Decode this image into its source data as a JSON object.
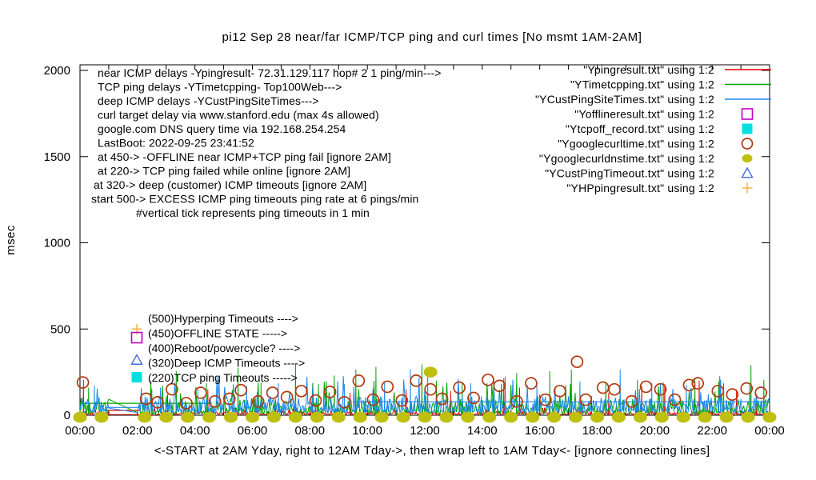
{
  "chart_data": {
    "type": "line",
    "title": "pi12 Sep 28  near/far ICMP/TCP ping and curl times [No msmt 1AM-2AM]",
    "xlabel": "<-START at 2AM Yday, right to 12AM Tday->, then wrap left to 1AM Tday<- [ignore connecting lines]",
    "ylabel": "msec",
    "ylim": [
      0,
      2000
    ],
    "xlim_hours": [
      0,
      24
    ],
    "y_ticks": [
      0,
      500,
      1000,
      1500,
      2000
    ],
    "x_tick_labels": [
      "00:00",
      "02:00",
      "04:00",
      "06:00",
      "08:00",
      "10:00",
      "12:00",
      "14:00",
      "16:00",
      "18:00",
      "20:00",
      "22:00",
      "00:00"
    ],
    "measurement_gap_hours": [
      1,
      2
    ],
    "grid": false,
    "legend_position": "top-right",
    "series": [
      {
        "name": "\"Ypingresult.txt\" using 1:2",
        "desc": "near ICMP ping delay",
        "type": "line",
        "color": "#e80000",
        "seed": 11,
        "baseline": [
          3,
          22
        ],
        "spikes": [
          [
            0.12,
            205
          ],
          [
            3.05,
            120
          ],
          [
            4.45,
            150
          ],
          [
            6.1,
            100
          ],
          [
            9.4,
            130
          ],
          [
            11.35,
            150
          ],
          [
            12.9,
            140
          ],
          [
            14.75,
            215
          ],
          [
            15.3,
            160
          ],
          [
            16.0,
            120
          ],
          [
            17.8,
            110
          ],
          [
            18.4,
            130
          ],
          [
            19.55,
            170
          ],
          [
            20.35,
            180
          ],
          [
            21.55,
            200
          ],
          [
            22.85,
            150
          ],
          [
            23.55,
            120
          ]
        ],
        "flats": [
          [
            0.9,
            2.1,
            28
          ]
        ]
      },
      {
        "name": "\"YTimetcpping.txt\" using 1:2",
        "desc": "TCP ping delay Top100Web",
        "type": "line",
        "color": "#00a400",
        "seed": 23,
        "baseline": [
          8,
          95
        ],
        "spikes": [
          [
            0.3,
            160
          ],
          [
            2.5,
            150
          ],
          [
            3.35,
            255
          ],
          [
            4.4,
            185
          ],
          [
            5.5,
            275
          ],
          [
            6.3,
            190
          ],
          [
            7.5,
            300
          ],
          [
            8.3,
            180
          ],
          [
            8.85,
            230
          ],
          [
            9.6,
            265
          ],
          [
            10.3,
            280
          ],
          [
            11.9,
            295
          ],
          [
            12.4,
            200
          ],
          [
            13.3,
            185
          ],
          [
            14.4,
            190
          ],
          [
            15.2,
            245
          ],
          [
            16.35,
            255
          ],
          [
            17.1,
            265
          ],
          [
            18.3,
            185
          ],
          [
            19.4,
            205
          ],
          [
            20.3,
            190
          ],
          [
            21.4,
            215
          ],
          [
            22.4,
            185
          ],
          [
            23.35,
            290
          ],
          [
            23.8,
            205
          ]
        ],
        "flats": [
          [
            0.0,
            4.6,
            69
          ]
        ]
      },
      {
        "name": "\"YCustPingSiteTimes.txt\" using 1:2",
        "desc": "deep ICMP ping delay",
        "type": "line",
        "color": "#1e87f0",
        "seed": 37,
        "baseline": [
          15,
          110
        ],
        "spikes": [
          [
            0.5,
            170
          ],
          [
            2.8,
            160
          ],
          [
            4.1,
            150
          ],
          [
            5.8,
            170
          ],
          [
            6.9,
            185
          ],
          [
            8.1,
            170
          ],
          [
            9.2,
            180
          ],
          [
            10.6,
            195
          ],
          [
            11.5,
            265
          ],
          [
            12.1,
            235
          ],
          [
            13.6,
            185
          ],
          [
            14.8,
            225
          ],
          [
            15.9,
            175
          ],
          [
            17.4,
            195
          ],
          [
            18.8,
            265
          ],
          [
            19.9,
            185
          ],
          [
            21.1,
            175
          ],
          [
            22.3,
            205
          ],
          [
            23.3,
            175
          ]
        ],
        "flats": [
          [
            0.9,
            2.1,
            45
          ],
          [
            9.5,
            24.0,
            78
          ]
        ]
      },
      {
        "name": "\"Yofflineresult.txt\" using 1:2",
        "desc": "offline state events",
        "type": "marker",
        "marker": "square-open",
        "color": "#bf00bf",
        "points": []
      },
      {
        "name": "\"Ytcpoff_record.txt\" using 1:2",
        "desc": "TCP ping timeout events",
        "type": "marker",
        "marker": "square-filled",
        "color": "#00e0e0",
        "points": []
      },
      {
        "name": "\"Ygooglecurltime.txt\" using 1:2",
        "desc": "curl time to target",
        "type": "marker",
        "marker": "circle-open",
        "color": "#b03a10",
        "points": [
          [
            0.1,
            190
          ],
          [
            2.3,
            95
          ],
          [
            2.7,
            75
          ],
          [
            3.2,
            150
          ],
          [
            3.7,
            70
          ],
          [
            4.2,
            130
          ],
          [
            4.7,
            80
          ],
          [
            5.2,
            95
          ],
          [
            5.6,
            145
          ],
          [
            6.2,
            80
          ],
          [
            6.7,
            130
          ],
          [
            7.2,
            105
          ],
          [
            7.7,
            140
          ],
          [
            8.2,
            85
          ],
          [
            8.7,
            135
          ],
          [
            9.2,
            75
          ],
          [
            9.7,
            200
          ],
          [
            10.2,
            90
          ],
          [
            10.7,
            165
          ],
          [
            11.2,
            85
          ],
          [
            11.7,
            200
          ],
          [
            12.2,
            150
          ],
          [
            12.6,
            95
          ],
          [
            13.2,
            160
          ],
          [
            13.7,
            100
          ],
          [
            14.2,
            205
          ],
          [
            14.6,
            170
          ],
          [
            15.2,
            80
          ],
          [
            15.7,
            185
          ],
          [
            16.2,
            90
          ],
          [
            16.7,
            140
          ],
          [
            17.3,
            310
          ],
          [
            17.6,
            90
          ],
          [
            18.2,
            160
          ],
          [
            18.6,
            150
          ],
          [
            19.2,
            80
          ],
          [
            19.7,
            165
          ],
          [
            20.2,
            150
          ],
          [
            20.7,
            90
          ],
          [
            21.2,
            175
          ],
          [
            21.5,
            185
          ],
          [
            22.2,
            140
          ],
          [
            22.7,
            120
          ],
          [
            23.2,
            155
          ],
          [
            23.7,
            130
          ]
        ],
        "size": 14
      },
      {
        "name": "\"Ygooglecurldnstime.txt\" using 1:2",
        "desc": "google.com DNS query time",
        "type": "marker",
        "marker": "circle-filled",
        "color": "#bfbf10",
        "points_pattern": {
          "start": 0,
          "end": 24,
          "step": 0.75,
          "value": 2,
          "skip": [
            1,
            2
          ]
        },
        "points": [
          [
            12.2,
            250
          ]
        ],
        "size": 17
      },
      {
        "name": "\"YCustPingTimeout.txt\" using 1:2",
        "desc": "deep ICMP timeout events",
        "type": "marker",
        "marker": "triangle-open",
        "color": "#4169e1",
        "points": []
      },
      {
        "name": "\"YHPpingresult.txt\" using 1:2",
        "desc": "hyperping timeout events",
        "type": "marker",
        "marker": "plus",
        "color": "#ffb545",
        "points": []
      }
    ],
    "annotations": {
      "info_lines": [
        {
          "text": "near ICMP delays -Ypingresult- 72.31.129.117 hop# 2 1 ping/min--->",
          "indent": 0
        },
        {
          "text": "TCP ping delays -YTimetcpping- Top100Web--->",
          "indent": 0
        },
        {
          "text": "deep ICMP delays -YCustPingSiteTimes--->",
          "indent": 0
        },
        {
          "text": "curl target delay via www.stanford.edu (max 4s allowed)",
          "indent": 0
        },
        {
          "text": "google.com DNS query time via 192.168.254.254",
          "indent": 0
        },
        {
          "text": "LastBoot: 2022-09-25 23:41:52",
          "indent": 0
        },
        {
          "text": "at 450-> -OFFLINE near ICMP+TCP ping fail [ignore 2AM]",
          "indent": 0
        },
        {
          "text": "at 220-> TCP ping failed while online [ignore 2AM]",
          "indent": 0
        },
        {
          "text": "at 320-> deep (customer) ICMP timeouts [ignore 2AM]",
          "indent": -5
        },
        {
          "text": "start 500-> EXCESS ICMP ping timeouts ping rate at 6 pings/min",
          "indent": -8
        },
        {
          "text": "#vertical tick represents ping timeouts in 1 min",
          "indent": 48
        }
      ],
      "threshold_labels": [
        {
          "marker": "plus",
          "color": "#ffb545",
          "value": 500,
          "label": "(500)Hyperping Timeouts ---->"
        },
        {
          "marker": "square-open",
          "color": "#bf00bf",
          "value": 450,
          "label": "(450)OFFLINE STATE ----->"
        },
        {
          "marker": null,
          "color": null,
          "value": 400,
          "label": "(400)Reboot/powercycle? ---->"
        },
        {
          "marker": "triangle-open",
          "color": "#4169e1",
          "value": 320,
          "label": "(320)Deep ICMP Timeouts ---->"
        },
        {
          "marker": "square-filled",
          "color": "#00e0e0",
          "value": 220,
          "label": "(220)TCP ping Timeouts ----->"
        }
      ]
    },
    "colors": {
      "axis": "#000000",
      "text": "#000000",
      "background": "#ffffff"
    }
  }
}
